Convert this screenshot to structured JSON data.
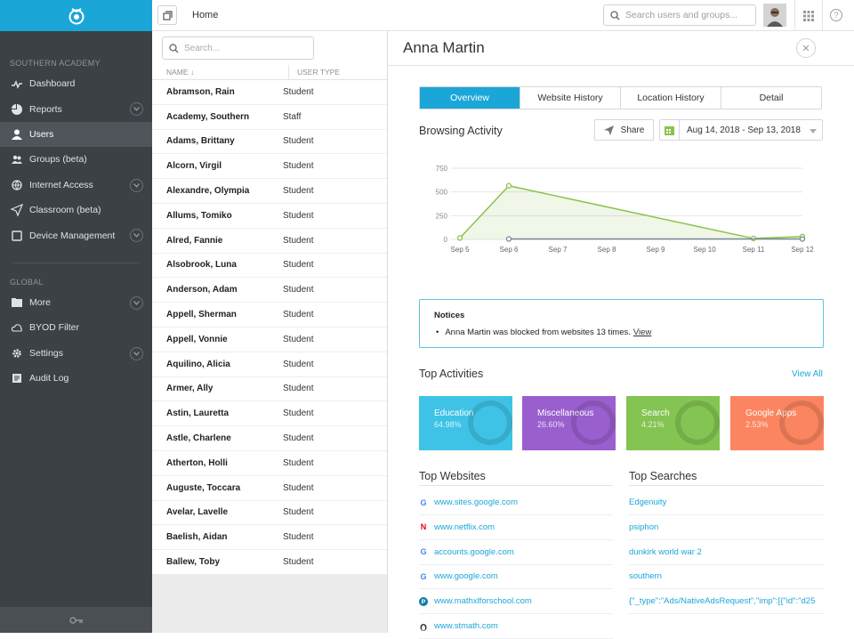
{
  "sidebar": {
    "section1": "SOUTHERN ACADEMY",
    "section2": "GLOBAL",
    "items1": [
      {
        "label": "Dashboard",
        "icon": "pulse-icon",
        "chev": false,
        "active": false
      },
      {
        "label": "Reports",
        "icon": "pie-icon",
        "chev": true,
        "active": false
      },
      {
        "label": "Users",
        "icon": "user-icon",
        "chev": false,
        "active": true
      },
      {
        "label": "Groups (beta)",
        "icon": "group-icon",
        "chev": false,
        "active": false
      },
      {
        "label": "Internet Access",
        "icon": "globe-icon",
        "chev": true,
        "active": false
      },
      {
        "label": "Classroom (beta)",
        "icon": "send-icon",
        "chev": false,
        "active": false
      },
      {
        "label": "Device Management",
        "icon": "tablet-icon",
        "chev": true,
        "active": false
      }
    ],
    "items2": [
      {
        "label": "More",
        "icon": "folder-icon",
        "chev": true,
        "active": false
      },
      {
        "label": "BYOD Filter",
        "icon": "cloud-icon",
        "chev": false,
        "active": false
      },
      {
        "label": "Settings",
        "icon": "gear-icon",
        "chev": true,
        "active": false
      },
      {
        "label": "Audit Log",
        "icon": "log-icon",
        "chev": false,
        "active": false
      }
    ]
  },
  "topbar": {
    "home": "Home",
    "search_placeholder": "Search users and groups..."
  },
  "list": {
    "search_placeholder": "Search...",
    "col_name": "NAME",
    "col_type": "USER TYPE",
    "rows": [
      {
        "name": "Abramson, Rain",
        "type": "Student"
      },
      {
        "name": "Academy, Southern",
        "type": "Staff"
      },
      {
        "name": "Adams, Brittany",
        "type": "Student"
      },
      {
        "name": "Alcorn, Virgil",
        "type": "Student"
      },
      {
        "name": "Alexandre, Olympia",
        "type": "Student"
      },
      {
        "name": "Allums, Tomiko",
        "type": "Student"
      },
      {
        "name": "Alred, Fannie",
        "type": "Student"
      },
      {
        "name": "Alsobrook, Luna",
        "type": "Student"
      },
      {
        "name": "Anderson, Adam",
        "type": "Student"
      },
      {
        "name": "Appell, Sherman",
        "type": "Student"
      },
      {
        "name": "Appell, Vonnie",
        "type": "Student"
      },
      {
        "name": "Aquilino, Alicia",
        "type": "Student"
      },
      {
        "name": "Armer, Ally",
        "type": "Student"
      },
      {
        "name": "Astin, Lauretta",
        "type": "Student"
      },
      {
        "name": "Astle, Charlene",
        "type": "Student"
      },
      {
        "name": "Atherton, Holli",
        "type": "Student"
      },
      {
        "name": "Auguste, Toccara",
        "type": "Student"
      },
      {
        "name": "Avelar, Lavelle",
        "type": "Student"
      },
      {
        "name": "Baelish, Aidan",
        "type": "Student"
      },
      {
        "name": "Ballew, Toby",
        "type": "Student"
      }
    ]
  },
  "detail": {
    "title": "Anna Martin",
    "tabs": [
      "Overview",
      "Website History",
      "Location History",
      "Detail"
    ],
    "browsing_title": "Browsing Activity",
    "share": "Share",
    "date_range": "Aug 14, 2018 - Sep 13, 2018",
    "notices_title": "Notices",
    "notice_text": "Anna Martin was blocked from websites 13 times.",
    "notice_link": "View",
    "top_activities": "Top Activities",
    "view_all": "View All",
    "activities": [
      {
        "name": "Education",
        "pct": "64.98%",
        "color": "#3ec3e6"
      },
      {
        "name": "Miscellaneous",
        "pct": "26.60%",
        "color": "#9a5fce"
      },
      {
        "name": "Search",
        "pct": "4.21%",
        "color": "#84c452"
      },
      {
        "name": "Google Apps",
        "pct": "2.53%",
        "color": "#fb8560"
      }
    ],
    "top_websites": "Top Websites",
    "top_searches": "Top Searches",
    "websites": [
      {
        "url": "www.sites.google.com",
        "icon": "google-icon"
      },
      {
        "url": "www.netflix.com",
        "icon": "netflix-icon"
      },
      {
        "url": "accounts.google.com",
        "icon": "google-icon"
      },
      {
        "url": "www.google.com",
        "icon": "google-icon"
      },
      {
        "url": "www.mathxlforschool.com",
        "icon": "pearson-icon"
      },
      {
        "url": "www.stmath.com",
        "icon": "penguin-icon"
      }
    ],
    "searches": [
      "Edgenuity",
      "psiphon",
      "dunkirk world war 2",
      "southern",
      "{\"_type\":\"Ads/NativeAdsRequest\",\"imp\":[{\"id\":\"d25"
    ]
  },
  "chart_data": {
    "type": "line",
    "categories": [
      "Sep 5",
      "Sep 6",
      "Sep 7",
      "Sep 8",
      "Sep 9",
      "Sep 10",
      "Sep 11",
      "Sep 12"
    ],
    "yticks": [
      0,
      250,
      500,
      750
    ],
    "ylim": [
      0,
      750
    ],
    "series": [
      {
        "values": [
          15,
          565,
          null,
          null,
          null,
          null,
          10,
          30
        ],
        "color": "#8bc34a",
        "fill": true
      },
      {
        "values": [
          null,
          5,
          null,
          null,
          null,
          null,
          null,
          5
        ],
        "color": "#7a8894",
        "fill": false
      }
    ],
    "grid": true
  }
}
